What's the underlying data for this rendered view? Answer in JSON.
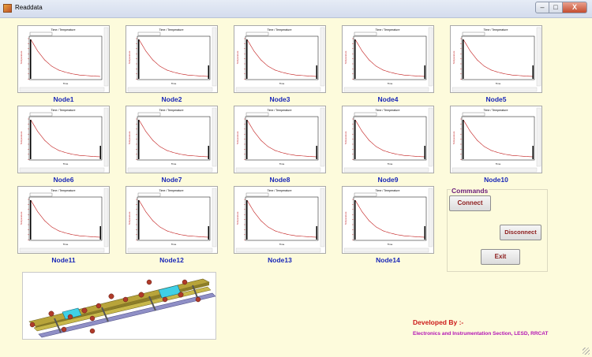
{
  "window": {
    "title": "Readdata",
    "close_label": "X"
  },
  "chart_common": {
    "title": "Time / Temperature",
    "xlabel": "Time",
    "ylabel": "Temperature",
    "series_color": "#c01818"
  },
  "nodes": [
    {
      "label": "Node1"
    },
    {
      "label": "Node2"
    },
    {
      "label": "Node3"
    },
    {
      "label": "Node4"
    },
    {
      "label": "Node5"
    },
    {
      "label": "Node6"
    },
    {
      "label": "Node7"
    },
    {
      "label": "Node8"
    },
    {
      "label": "Node9"
    },
    {
      "label": "Node10"
    },
    {
      "label": "Node11"
    },
    {
      "label": "Node12"
    },
    {
      "label": "Node13"
    },
    {
      "label": "Node14"
    }
  ],
  "chart_data": {
    "type": "line",
    "title": "Time / Temperature",
    "xlabel": "Time",
    "ylabel": "Temperature",
    "note": "14 identical-style exponential decay curves, one per node",
    "x": [
      0,
      1,
      2,
      3,
      4,
      5,
      6,
      7,
      8,
      9,
      10
    ],
    "values": [
      -15,
      -120,
      -200,
      -255,
      -290,
      -310,
      -325,
      -335,
      -340,
      -345,
      -348
    ]
  },
  "commands": {
    "title": "Commands",
    "connect": "Connect",
    "disconnect": "Disconnect",
    "exit": "Exit"
  },
  "footer": {
    "developed_by": "Developed By :-",
    "organization": "Electronics and Instrumentation Section, LESD, RRCAT"
  }
}
